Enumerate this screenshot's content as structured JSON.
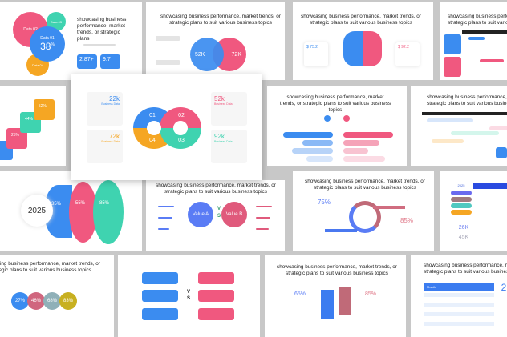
{
  "headline": "showcasing business performance, market trends, or strategic plans  to suit various business topics",
  "headline_short": "showcasing business performance, market trends, or strategic plans",
  "colors": {
    "blue": "#3b8cf0",
    "pink": "#f0587f",
    "green": "#3fd3b0",
    "orange": "#f5a623",
    "purple": "#8b5cf6",
    "background": "#c8c8c8"
  },
  "bubbles": {
    "data01": "Data 01",
    "pct": "38",
    "pct_sup": "%",
    "data02": "Data 02",
    "data03": "Data 03",
    "data04": "Data 04",
    "stat1": "2.87+",
    "stat2": "9.7"
  },
  "venn": {
    "left": "52K",
    "right": "72K"
  },
  "featured": {
    "items": [
      {
        "num": "01",
        "value": "22k",
        "label": "Business Data"
      },
      {
        "num": "02",
        "value": "52k",
        "label": "Business Data"
      },
      {
        "num": "03",
        "value": "92k",
        "label": "Business Data"
      },
      {
        "num": "04",
        "value": "72k",
        "label": "Business Data"
      }
    ]
  },
  "squares": [
    "25%",
    "44%",
    "52%"
  ],
  "brain": {
    "left": "$ 75.2",
    "right": "$ 92.2"
  },
  "year": "2025",
  "projects": [
    "35%",
    "55%",
    "85%"
  ],
  "versus": {
    "a": "Value A",
    "b": "Value B",
    "v": "V",
    "s": "S"
  },
  "circle_arrows": {
    "left": "75%",
    "right": "85%"
  },
  "table_k": {
    "year": "2025",
    "v1": "26K",
    "v2": "45K"
  },
  "circles4": [
    "27%",
    "46%",
    "68%",
    "83%"
  ],
  "arrows": {
    "left": "65%",
    "right": "85%"
  },
  "table_month": {
    "header": "Month",
    "big": "2"
  }
}
